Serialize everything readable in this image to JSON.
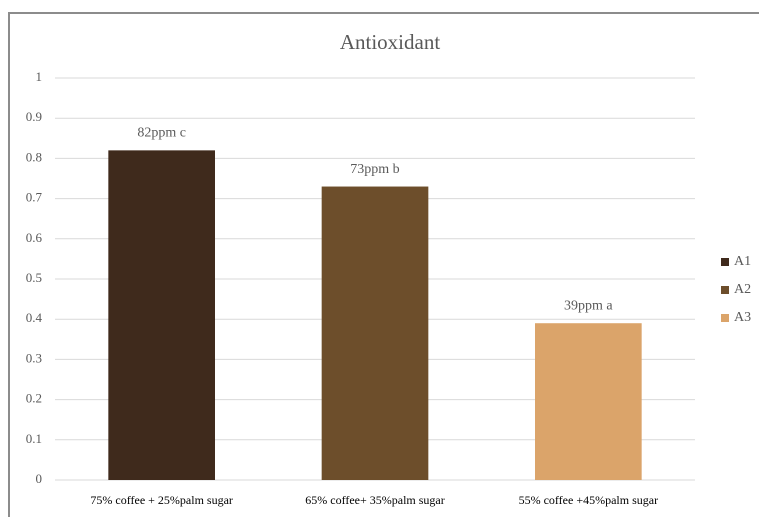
{
  "chart_data": {
    "type": "bar",
    "stacked": true,
    "title": "Antioxidant",
    "categories": [
      "75% coffee + 25%palm sugar",
      "65% coffee+ 35%palm sugar",
      "55% coffee +45%palm sugar"
    ],
    "series": [
      {
        "name": "A1",
        "color": "#3f2a1c",
        "values": [
          0.82,
          null,
          null
        ],
        "annotation": "82ppm c"
      },
      {
        "name": "A2",
        "color": "#6d4e2b",
        "values": [
          null,
          0.73,
          null
        ],
        "annotation": "73ppm b"
      },
      {
        "name": "A3",
        "color": "#dba46a",
        "values": [
          null,
          null,
          0.39
        ],
        "annotation": "39ppm a"
      }
    ],
    "ylim": [
      0,
      1
    ],
    "yticks": [
      0,
      0.1,
      0.2,
      0.3,
      0.4,
      0.5,
      0.6,
      0.7,
      0.8,
      0.9,
      1
    ],
    "grid": true,
    "legend": "right"
  }
}
